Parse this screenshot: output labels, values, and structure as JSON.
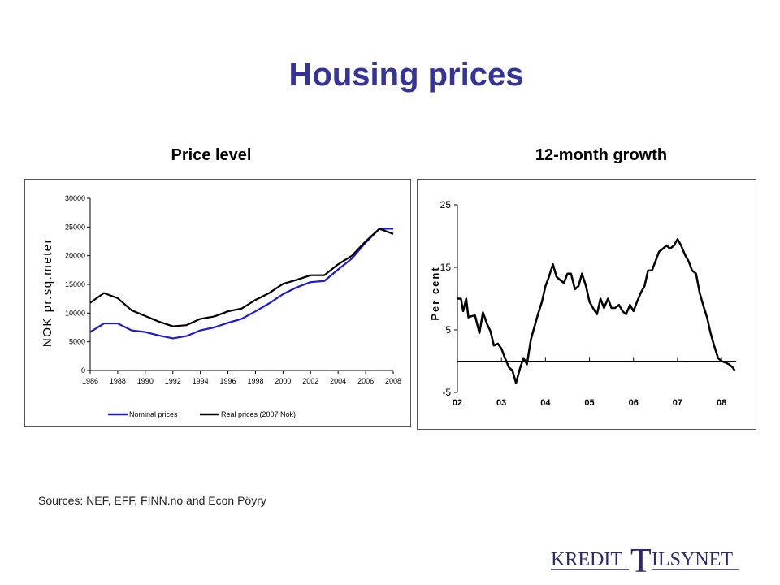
{
  "page": {
    "title": "Housing prices",
    "sources": "Sources: NEF, EFF, FINN.no and Econ Pöyry",
    "logo": {
      "part1": "KREDIT",
      "big_letter": "T",
      "part2": "ILSYNET"
    }
  },
  "chart_data": [
    {
      "type": "line",
      "title": "Price level",
      "ylabel": "NOK pr.sq.meter",
      "xlabel": "",
      "ylim": [
        0,
        30000
      ],
      "xlim": [
        1986,
        2008
      ],
      "y_ticks": [
        "0",
        "5000",
        "10000",
        "15000",
        "20000",
        "25000",
        "30000"
      ],
      "x_ticks": [
        "1986",
        "1988",
        "1990",
        "1992",
        "1994",
        "1996",
        "1998",
        "2000",
        "2002",
        "2004",
        "2006",
        "2008"
      ],
      "legend": "bottom",
      "grid": false,
      "series": [
        {
          "name": "Nominal prices",
          "color": "#1a1acc",
          "x": [
            1986,
            1987,
            1988,
            1989,
            1990,
            1991,
            1992,
            1993,
            1994,
            1995,
            1996,
            1997,
            1998,
            1999,
            2000,
            2001,
            2002,
            2003,
            2004,
            2005,
            2006,
            2007,
            2008
          ],
          "values": [
            6700,
            8200,
            8200,
            7000,
            6700,
            6100,
            5600,
            6000,
            7000,
            7500,
            8300,
            9000,
            10300,
            11700,
            13300,
            14500,
            15400,
            15600,
            17600,
            19500,
            22300,
            24700,
            24700
          ]
        },
        {
          "name": "Real prices (2007 Nok)",
          "color": "#000000",
          "x": [
            1986,
            1987,
            1988,
            1989,
            1990,
            1991,
            1992,
            1993,
            1994,
            1995,
            1996,
            1997,
            1998,
            1999,
            2000,
            2001,
            2002,
            2003,
            2004,
            2005,
            2006,
            2007,
            2008
          ],
          "values": [
            11800,
            13500,
            12600,
            10500,
            9500,
            8500,
            7700,
            7900,
            9000,
            9400,
            10300,
            10800,
            12300,
            13500,
            15100,
            15800,
            16600,
            16600,
            18500,
            20000,
            22500,
            24700,
            23800
          ]
        }
      ]
    },
    {
      "type": "line",
      "title": "12-month growth",
      "ylabel": "Per cent",
      "xlabel": "",
      "ylim": [
        -5,
        25
      ],
      "xlim": [
        2002,
        2008.33
      ],
      "y_ticks": [
        "-5",
        "5",
        "15",
        "25"
      ],
      "x_ticks": [
        "02",
        "03",
        "04",
        "05",
        "06",
        "07",
        "08"
      ],
      "legend": "none",
      "grid": false,
      "series": [
        {
          "color": "#000000",
          "x": [
            2002.0,
            2002.08,
            2002.13,
            2002.2,
            2002.25,
            2002.32,
            2002.4,
            2002.5,
            2002.58,
            2002.67,
            2002.75,
            2002.83,
            2002.92,
            2003.0,
            2003.08,
            2003.17,
            2003.25,
            2003.33,
            2003.42,
            2003.5,
            2003.58,
            2003.67,
            2003.75,
            2003.83,
            2003.92,
            2004.0,
            2004.08,
            2004.17,
            2004.25,
            2004.33,
            2004.42,
            2004.5,
            2004.58,
            2004.67,
            2004.75,
            2004.83,
            2004.92,
            2005.0,
            2005.08,
            2005.17,
            2005.25,
            2005.33,
            2005.42,
            2005.5,
            2005.58,
            2005.67,
            2005.75,
            2005.83,
            2005.92,
            2006.0,
            2006.08,
            2006.17,
            2006.25,
            2006.33,
            2006.42,
            2006.5,
            2006.58,
            2006.67,
            2006.75,
            2006.83,
            2006.92,
            2007.0,
            2007.08,
            2007.17,
            2007.25,
            2007.33,
            2007.42,
            2007.5,
            2007.58,
            2007.67,
            2007.75,
            2007.83,
            2007.92,
            2008.0,
            2008.08,
            2008.17,
            2008.25,
            2008.3
          ],
          "values": [
            10,
            10,
            8,
            10,
            7,
            7.2,
            7.3,
            4.5,
            7.8,
            6,
            4.8,
            2.5,
            2.8,
            2,
            0.5,
            -1,
            -1.5,
            -3.5,
            -1.2,
            0.5,
            -0.5,
            3.5,
            5.5,
            7.5,
            9.5,
            12,
            13.5,
            15.5,
            13.5,
            13,
            12.5,
            14,
            14,
            11.5,
            12,
            14,
            12,
            9.5,
            8.5,
            7.5,
            10,
            8.5,
            10,
            8.5,
            8.5,
            9,
            8,
            7.5,
            9,
            8,
            9.5,
            11,
            12,
            14.5,
            14.5,
            16,
            17.5,
            18,
            18.5,
            18,
            18.5,
            19.5,
            18.5,
            17,
            16,
            14.5,
            14,
            11,
            9,
            7,
            4.5,
            2.5,
            0.5,
            0,
            -0.2,
            -0.5,
            -1,
            -1.5
          ]
        }
      ]
    }
  ]
}
